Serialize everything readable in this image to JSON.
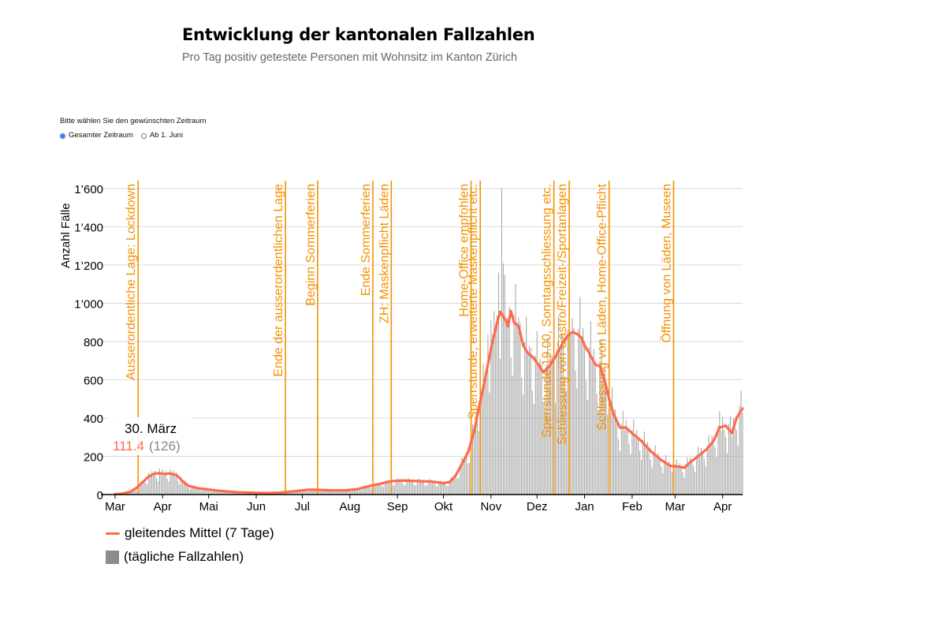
{
  "header": {
    "title": "Entwicklung der kantonalen Fallzahlen",
    "subtitle": "Pro Tag positiv getestete Personen mit Wohnsitz im Kanton Zürich"
  },
  "controls": {
    "label": "Bitte wählen Sie den gewünschten Zeitraum",
    "options": [
      "Gesamter Zeitraum",
      "Ab 1. Juni"
    ],
    "selected": "Gesamter Zeitraum"
  },
  "legend": {
    "line": "gleitendes Mittel (7 Tage)",
    "bars": "(tägliche Fallzahlen)"
  },
  "tooltip": {
    "date": "30. März",
    "avg": "111.4",
    "daily": "(126)"
  },
  "colors": {
    "line": "#ff6a4d",
    "bars": "#a6a6a6",
    "event": "#f39200",
    "grid": "#d9d9d9"
  },
  "chart_data": {
    "type": "bar+line",
    "ylabel": "Anzahl Fälle",
    "ylim": [
      0,
      1600
    ],
    "yticks": [
      0,
      200,
      400,
      600,
      800,
      1000,
      1200,
      1400,
      1600
    ],
    "ytick_labels": [
      "0",
      "200",
      "400",
      "600",
      "800",
      "1’000",
      "1’200",
      "1’400",
      "1’600"
    ],
    "x_range_days": [
      0,
      409
    ],
    "month_ticks": [
      {
        "label": "Mar",
        "day": 0
      },
      {
        "label": "Apr",
        "day": 31
      },
      {
        "label": "Mai",
        "day": 61
      },
      {
        "label": "Jun",
        "day": 92
      },
      {
        "label": "Jul",
        "day": 122
      },
      {
        "label": "Aug",
        "day": 153
      },
      {
        "label": "Sep",
        "day": 184
      },
      {
        "label": "Okt",
        "day": 214
      },
      {
        "label": "Nov",
        "day": 245
      },
      {
        "label": "Dez",
        "day": 275
      },
      {
        "label": "Jan",
        "day": 306
      },
      {
        "label": "Feb",
        "day": 337
      },
      {
        "label": "Mar",
        "day": 365
      },
      {
        "label": "Apr",
        "day": 396
      }
    ],
    "events": [
      {
        "day": 15,
        "label": "Ausserordentliche Lage: Lockdown"
      },
      {
        "day": 111,
        "label": "Ende der ausserordentlichen Lage"
      },
      {
        "day": 132,
        "label": "Beginn Sommerferien"
      },
      {
        "day": 168,
        "label": "Ende Sommerferien"
      },
      {
        "day": 180,
        "label": "ZH: Maskenpflicht Läden"
      },
      {
        "day": 232,
        "label": "Home-Office empfohlen"
      },
      {
        "day": 238,
        "label": "Sperrstunde, erweiterte Maskenpflicht etc."
      },
      {
        "day": 286,
        "label": "Sperrstunde 19.00, Sonntagsschliessung etc."
      },
      {
        "day": 296,
        "label": "Schliessung von Gastro/Freizeit-/Sportanlagen"
      },
      {
        "day": 322,
        "label": "Schliessung von Läden, Home-Office-Pflicht"
      },
      {
        "day": 364,
        "label": "Öffnung von Läden, Museen"
      }
    ],
    "avg_anchors": [
      [
        0,
        2
      ],
      [
        5,
        5
      ],
      [
        10,
        15
      ],
      [
        14,
        35
      ],
      [
        18,
        65
      ],
      [
        22,
        95
      ],
      [
        26,
        110
      ],
      [
        29,
        111.4
      ],
      [
        32,
        108
      ],
      [
        36,
        110
      ],
      [
        40,
        102
      ],
      [
        44,
        70
      ],
      [
        48,
        45
      ],
      [
        54,
        33
      ],
      [
        62,
        25
      ],
      [
        70,
        18
      ],
      [
        80,
        12
      ],
      [
        92,
        9
      ],
      [
        100,
        8
      ],
      [
        108,
        10
      ],
      [
        114,
        15
      ],
      [
        120,
        20
      ],
      [
        126,
        25
      ],
      [
        130,
        25
      ],
      [
        140,
        22
      ],
      [
        150,
        22
      ],
      [
        158,
        28
      ],
      [
        166,
        45
      ],
      [
        172,
        55
      ],
      [
        180,
        70
      ],
      [
        186,
        73
      ],
      [
        192,
        72
      ],
      [
        198,
        70
      ],
      [
        206,
        68
      ],
      [
        214,
        60
      ],
      [
        218,
        65
      ],
      [
        222,
        100
      ],
      [
        226,
        160
      ],
      [
        230,
        220
      ],
      [
        234,
        330
      ],
      [
        237,
        450
      ],
      [
        240,
        560
      ],
      [
        243,
        680
      ],
      [
        246,
        800
      ],
      [
        249,
        900
      ],
      [
        251,
        955
      ],
      [
        253,
        930
      ],
      [
        255,
        905
      ],
      [
        256,
        880
      ],
      [
        258,
        960
      ],
      [
        260,
        900
      ],
      [
        263,
        880
      ],
      [
        266,
        780
      ],
      [
        269,
        740
      ],
      [
        272,
        720
      ],
      [
        275,
        690
      ],
      [
        279,
        640
      ],
      [
        283,
        670
      ],
      [
        287,
        720
      ],
      [
        291,
        780
      ],
      [
        295,
        830
      ],
      [
        298,
        850
      ],
      [
        301,
        840
      ],
      [
        304,
        820
      ],
      [
        306,
        780
      ],
      [
        309,
        740
      ],
      [
        313,
        680
      ],
      [
        316,
        670
      ],
      [
        319,
        600
      ],
      [
        322,
        500
      ],
      [
        325,
        420
      ],
      [
        329,
        350
      ],
      [
        333,
        350
      ],
      [
        337,
        320
      ],
      [
        343,
        280
      ],
      [
        350,
        220
      ],
      [
        356,
        180
      ],
      [
        362,
        150
      ],
      [
        368,
        145
      ],
      [
        371,
        140
      ],
      [
        375,
        170
      ],
      [
        380,
        200
      ],
      [
        386,
        240
      ],
      [
        390,
        280
      ],
      [
        394,
        350
      ],
      [
        398,
        360
      ],
      [
        402,
        320
      ],
      [
        405,
        400
      ],
      [
        409,
        450
      ]
    ]
  }
}
